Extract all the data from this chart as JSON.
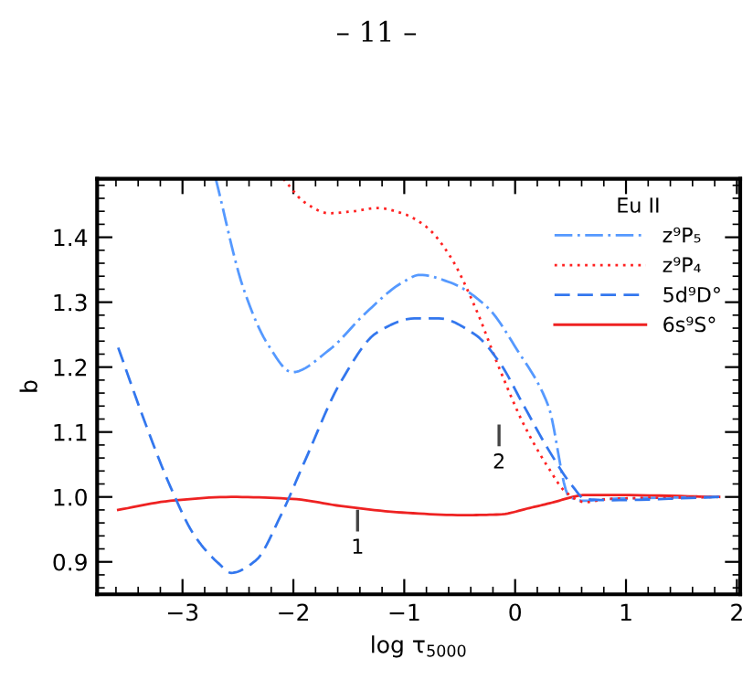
{
  "chart_data": {
    "type": "line",
    "xlabel": "log τ$_{5000}$",
    "ylabel": "b",
    "legend_title": "Eu II",
    "legend": "top right",
    "grid": false,
    "marker": "none",
    "xlim": [
      -3.77,
      2.03
    ],
    "ylim": [
      0.85,
      1.49
    ],
    "xticks": [
      -3,
      -2,
      -1,
      0,
      1,
      2
    ],
    "yticks": [
      {
        "value": 0.9,
        "label": "0.9"
      },
      {
        "value": 1.0,
        "label": "1.0"
      },
      {
        "value": 1.1,
        "label": "1.1"
      },
      {
        "value": 1.2,
        "label": "1.2"
      },
      {
        "value": 1.3,
        "label": "1.3"
      },
      {
        "value": 1.4,
        "label": "1.4"
      }
    ],
    "annotations": [
      "– 11 –",
      "1",
      "2"
    ],
    "series": [
      {
        "name": "z⁹P₅",
        "color": "#5599ff",
        "line_style": "dashdot",
        "x": [
          -2.7,
          -2.45,
          -2.23,
          -2.01,
          -1.68,
          -1.35,
          -1.02,
          -0.86,
          -0.58,
          -0.25,
          0.02,
          0.3,
          0.49,
          0.63,
          0.85,
          1.84
        ],
        "values": [
          1.49,
          1.321,
          1.235,
          1.192,
          1.226,
          1.283,
          1.33,
          1.342,
          1.33,
          1.292,
          1.226,
          1.14,
          1.0,
          0.994,
          0.997,
          1.0
        ]
      },
      {
        "name": "z⁹P₄",
        "color": "#ff2222",
        "line_style": "dotted",
        "x": [
          -2.09,
          -1.9,
          -1.68,
          -1.46,
          -1.24,
          -1.02,
          -0.8,
          -0.58,
          -0.36,
          -0.14,
          0.08,
          0.3,
          0.46,
          0.63,
          0.85,
          1.84
        ],
        "values": [
          1.49,
          1.454,
          1.437,
          1.44,
          1.445,
          1.437,
          1.416,
          1.369,
          1.292,
          1.197,
          1.111,
          1.045,
          1.007,
          0.992,
          0.997,
          1.0
        ]
      },
      {
        "name": "5d⁹D°",
        "color": "#3377ee",
        "line_style": "dashed",
        "x": [
          -3.58,
          -3.33,
          -3.11,
          -2.89,
          -2.67,
          -2.56,
          -2.34,
          -2.12,
          -1.9,
          -1.57,
          -1.24,
          -0.91,
          -0.69,
          -0.36,
          -0.14,
          0.08,
          0.3,
          0.52,
          0.63,
          0.85,
          1.84
        ],
        "values": [
          1.23,
          1.111,
          1.016,
          0.94,
          0.897,
          0.883,
          0.902,
          0.969,
          1.054,
          1.178,
          1.254,
          1.275,
          1.275,
          1.25,
          1.207,
          1.14,
          1.073,
          1.016,
          0.997,
          0.995,
          1.0
        ]
      },
      {
        "name": "6s⁹S°",
        "color": "#ee2222",
        "line_style": "solid",
        "x": [
          -3.58,
          -3.11,
          -2.56,
          -2.01,
          -1.57,
          -1.02,
          -0.47,
          -0.14,
          0.13,
          0.35,
          0.52,
          0.63,
          0.85,
          1.84
        ],
        "values": [
          0.98,
          0.994,
          1.0,
          0.997,
          0.986,
          0.976,
          0.972,
          0.973,
          0.983,
          0.992,
          1.0,
          1.003,
          1.003,
          1.0
        ]
      }
    ]
  }
}
